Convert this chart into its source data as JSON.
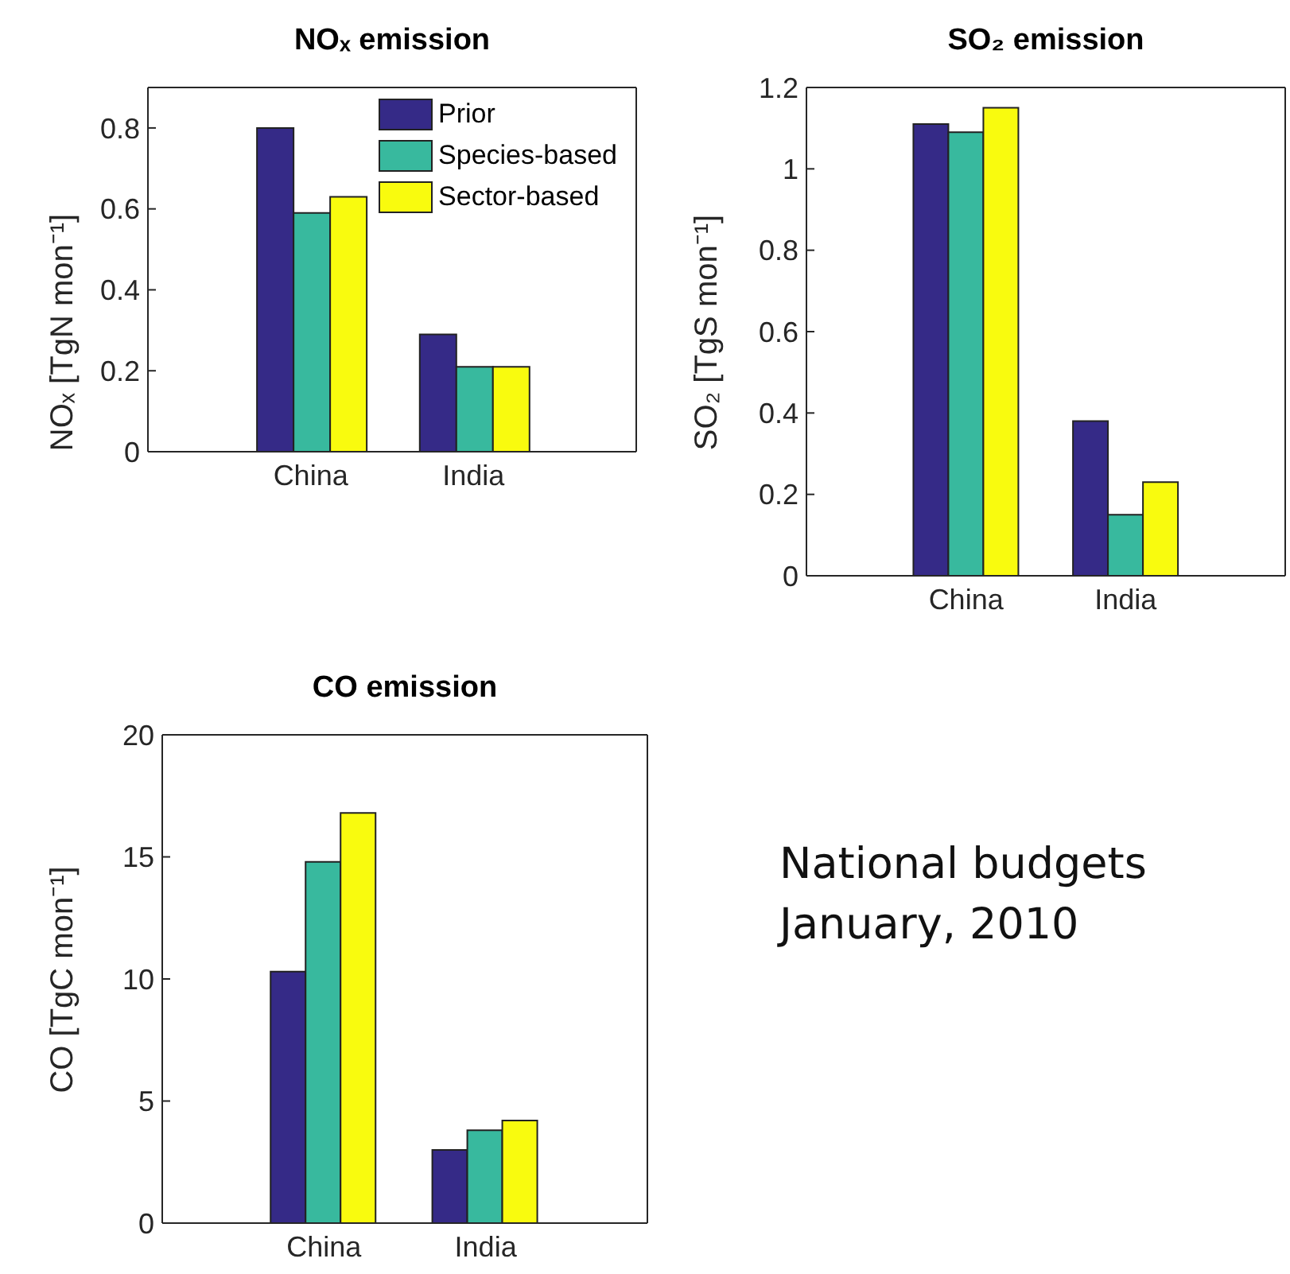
{
  "chart_data": [
    {
      "type": "bar",
      "title": "NOₓ emission",
      "ylabel": "NOₓ [TgN mon⁻¹]",
      "categories": [
        "China",
        "India"
      ],
      "ylim": [
        0,
        0.9
      ],
      "yticks": [
        0,
        0.2,
        0.4,
        0.6,
        0.8
      ],
      "legend": "top right",
      "series": [
        {
          "name": "Prior",
          "color": "#352a87",
          "values": [
            0.8,
            0.29
          ]
        },
        {
          "name": "Species-based",
          "color": "#38b99e",
          "values": [
            0.59,
            0.21
          ]
        },
        {
          "name": "Sector-based",
          "color": "#f9fb0e",
          "values": [
            0.63,
            0.21
          ]
        }
      ]
    },
    {
      "type": "bar",
      "title": "SO₂ emission",
      "ylabel": "SO₂ [TgS mon⁻¹]",
      "categories": [
        "China",
        "India"
      ],
      "ylim": [
        0,
        1.2
      ],
      "yticks": [
        0,
        0.2,
        0.4,
        0.6,
        0.8,
        1,
        1.2
      ],
      "series": [
        {
          "color": "#352a87",
          "values": [
            1.11,
            0.38
          ]
        },
        {
          "color": "#38b99e",
          "values": [
            1.09,
            0.15
          ]
        },
        {
          "color": "#f9fb0e",
          "values": [
            1.15,
            0.23
          ]
        }
      ]
    },
    {
      "type": "bar",
      "title": "CO emission",
      "ylabel": "CO [TgC mon⁻¹]",
      "categories": [
        "China",
        "India"
      ],
      "ylim": [
        0,
        20
      ],
      "yticks": [
        0,
        5,
        10,
        15,
        20
      ],
      "series": [
        {
          "color": "#352a87",
          "values": [
            10.3,
            3.0
          ]
        },
        {
          "color": "#38b99e",
          "values": [
            14.8,
            3.8
          ]
        },
        {
          "color": "#f9fb0e",
          "values": [
            16.8,
            4.2
          ]
        }
      ]
    },
    {
      "type": "other",
      "annotations": [
        "National budgets",
        "January, 2010"
      ]
    }
  ]
}
